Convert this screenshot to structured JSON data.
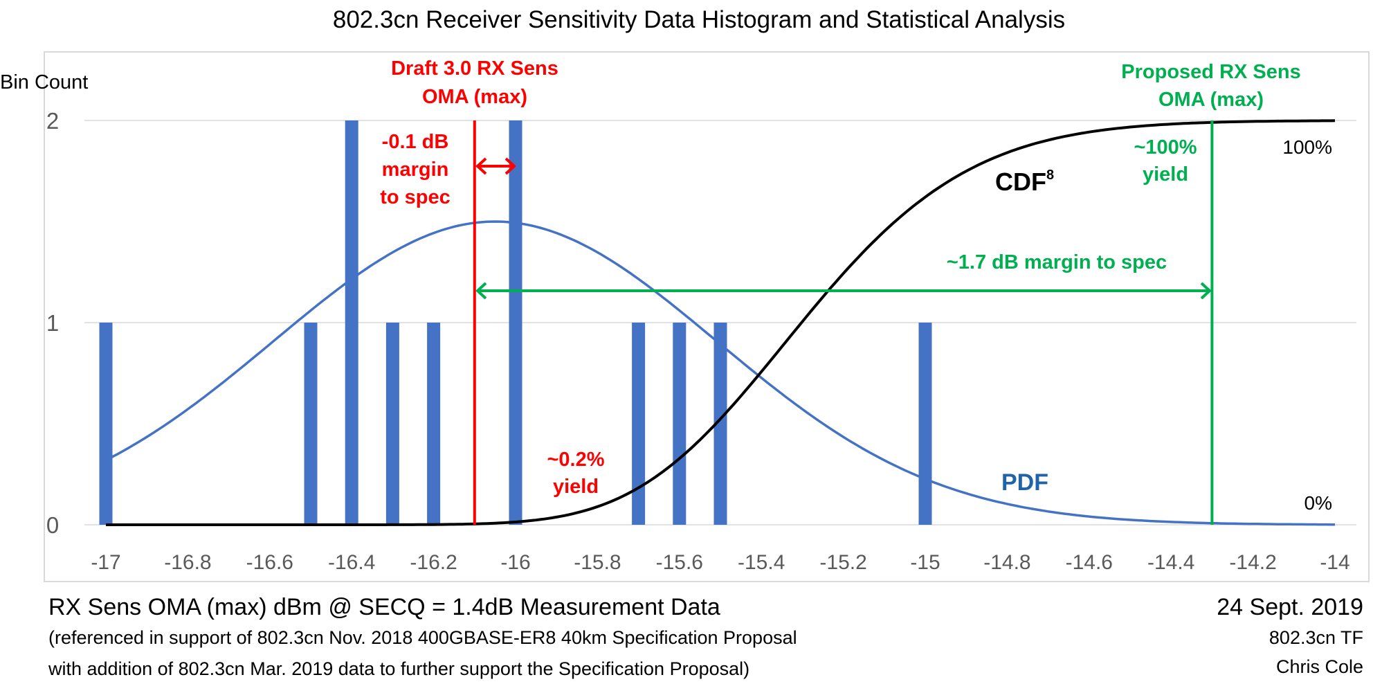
{
  "chart_data": {
    "type": "bar",
    "title": "802.3cn Receiver Sensitivity Data Histogram and Statistical Analysis",
    "ylabel": "Bin Count",
    "xlabel": "RX Sens OMA (max) dBm @ SECQ = 1.4dB Measurement Data",
    "xlim": [
      -17,
      -14
    ],
    "ylim": [
      0,
      2
    ],
    "grid": true,
    "x_ticks": [
      "-17",
      "-16.8",
      "-16.6",
      "-16.4",
      "-16.2",
      "-16",
      "-15.8",
      "-15.6",
      "-15.4",
      "-15.2",
      "-15",
      "-14.8",
      "-14.6",
      "-14.4",
      "-14.2",
      "-14"
    ],
    "y_ticks": [
      "0",
      "1",
      "2"
    ],
    "bars": {
      "name": "Bin Count",
      "x": [
        -17.0,
        -16.5,
        -16.4,
        -16.3,
        -16.2,
        -16.0,
        -15.7,
        -15.6,
        -15.5,
        -15.0
      ],
      "values": [
        1,
        1,
        2,
        1,
        1,
        2,
        1,
        1,
        1,
        1
      ],
      "color": "#4472c4"
    },
    "series": [
      {
        "name": "PDF",
        "type": "line",
        "color": "#4472c4",
        "gaussian_mean": -16.05,
        "gaussian_sigma": 0.54,
        "peak_bin_count": 1.5,
        "x_range": [
          -17,
          -14
        ]
      },
      {
        "name": "CDF8",
        "type": "line",
        "color": "#000000",
        "note": "Gaussian CDF raised to 8th power, scaled 0-100% over bin count 0-2",
        "x_range": [
          -17,
          -14
        ]
      }
    ],
    "reference_lines": [
      {
        "name": "Draft 3.0 RX Sens OMA (max)",
        "x": -16.1,
        "color": "#ff0000"
      },
      {
        "name": "Proposed RX Sens OMA (max)",
        "x": -14.3,
        "color": "#00b050"
      }
    ],
    "annotations": {
      "draft_label": [
        "Draft 3.0 RX Sens",
        "OMA (max)"
      ],
      "draft_margin": [
        "-0.1 dB",
        "margin",
        "to spec"
      ],
      "draft_yield": [
        "~0.2%",
        "yield"
      ],
      "proposed_label": [
        "Proposed RX Sens",
        "OMA (max)"
      ],
      "proposed_yield": [
        "~100%",
        "yield"
      ],
      "proposed_margin": "~1.7 dB margin to spec",
      "cdf_label": "CDF",
      "cdf_sup": "8",
      "pdf_label": "PDF",
      "pct_100": "100%",
      "pct_0": "0%"
    }
  },
  "footer": {
    "caption_main": "RX Sens OMA (max) dBm @ SECQ = 1.4dB Measurement Data",
    "caption_line2": "(referenced in support of 802.3cn Nov. 2018 400GBASE-ER8 40km Specification Proposal",
    "caption_line3": "with addition of 802.3cn Mar. 2019 data to further support the Specification Proposal)",
    "date": "24 Sept. 2019",
    "group": "802.3cn TF",
    "author": "Chris Cole"
  },
  "colors": {
    "red": "#ff0000",
    "green": "#00b050",
    "bar": "#4472c4",
    "pdf_label": "#1f64a8",
    "axis_text": "#595959"
  }
}
